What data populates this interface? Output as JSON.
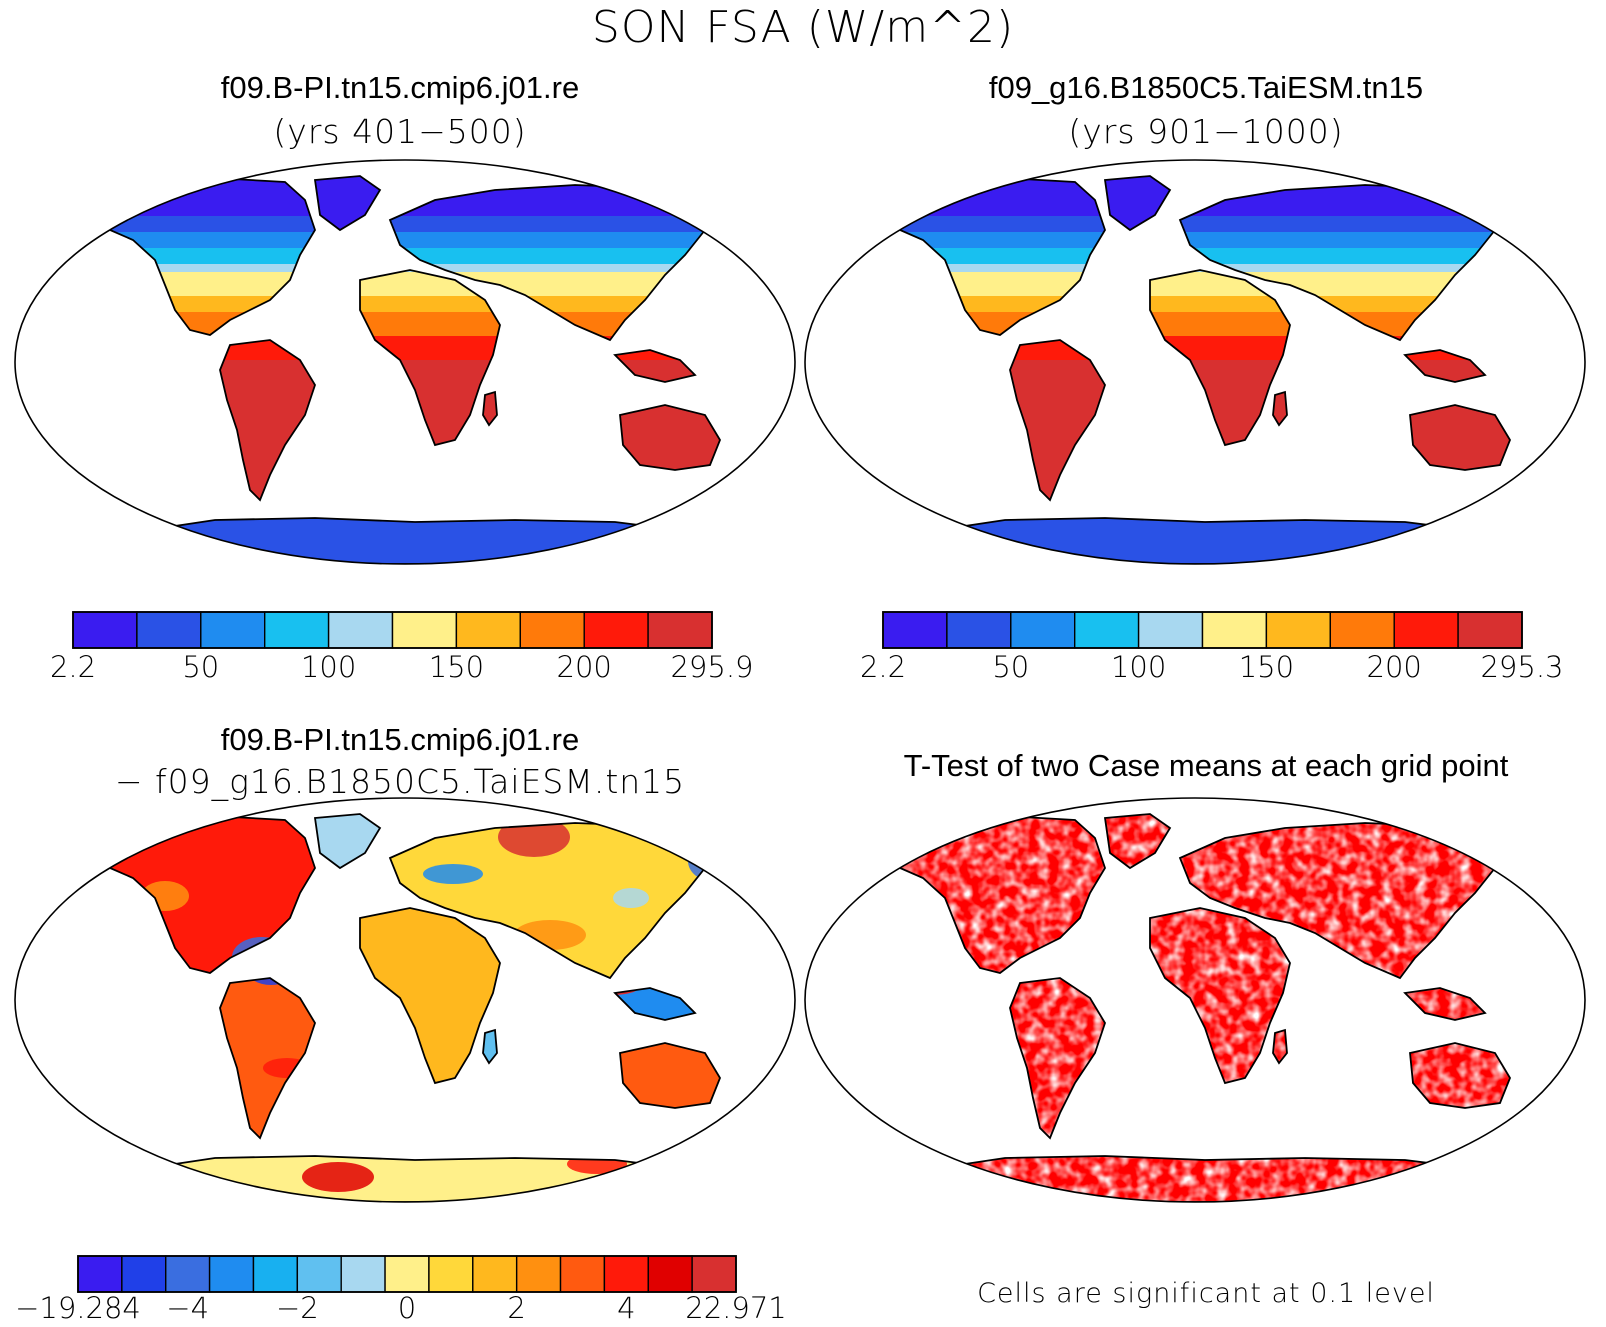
{
  "main_title": "SON FSA (W/m^2)",
  "panels": {
    "top_left": {
      "title": "f09.B-PI.tn15.cmip6.j01.re",
      "subtitle": "(yrs 401−500)",
      "colorbar": {
        "colors": [
          "#3a1cf0",
          "#2a52e6",
          "#1f8cf0",
          "#18c0f0",
          "#a8d8f0",
          "#fff08a",
          "#ffb81e",
          "#ff7a0a",
          "#ff1a0a",
          "#d83030"
        ],
        "labels": [
          "2.2",
          "50",
          "100",
          "150",
          "200",
          "295.9"
        ]
      }
    },
    "top_right": {
      "title": "f09_g16.B1850C5.TaiESM.tn15",
      "subtitle": "(yrs 901−1000)",
      "colorbar": {
        "colors": [
          "#3a1cf0",
          "#2a52e6",
          "#1f8cf0",
          "#18c0f0",
          "#a8d8f0",
          "#fff08a",
          "#ffb81e",
          "#ff7a0a",
          "#ff1a0a",
          "#d83030"
        ],
        "labels": [
          "2.2",
          "50",
          "100",
          "150",
          "200",
          "295.3"
        ]
      }
    },
    "bottom_left": {
      "title": "f09.B-PI.tn15.cmip6.j01.re",
      "subtitle": "− f09_g16.B1850C5.TaiESM.tn15",
      "colorbar": {
        "colors": [
          "#3a1cf0",
          "#2040e8",
          "#3a6ee0",
          "#1f8cf0",
          "#18b0f0",
          "#60c0f0",
          "#a8d8f0",
          "#fff08a",
          "#ffd83a",
          "#ffb81e",
          "#ff9010",
          "#ff5a10",
          "#ff1a0a",
          "#e00000",
          "#d83030"
        ],
        "labels": [
          "−19.284",
          "−4",
          "−2",
          "0",
          "2",
          "4",
          "22.971"
        ]
      }
    },
    "bottom_right": {
      "title": "T-Test of two Case means at each grid point",
      "note": "Cells are significant at 0.1 level",
      "significant_color": "#ff0000"
    }
  }
}
